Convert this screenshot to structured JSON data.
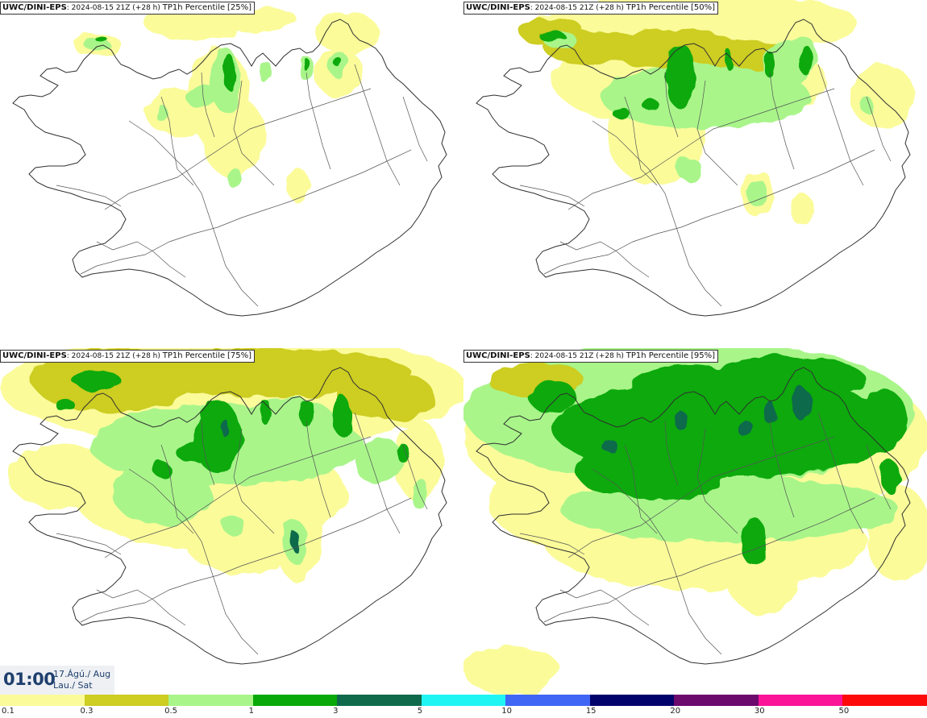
{
  "panels": [
    {
      "model": "UWC/DINI-EPS",
      "run": ": 2024-08-15 21Z (+28 h)",
      "product": "TP1h Percentile",
      "percentile": "[25%]"
    },
    {
      "model": "UWC/DINI-EPS",
      "run": ": 2024-08-15 21Z (+28 h)",
      "product": "TP1h Percentile",
      "percentile": "[50%]"
    },
    {
      "model": "UWC/DINI-EPS",
      "run": ": 2024-08-15 21Z (+28 h)",
      "product": "TP1h Percentile",
      "percentile": "[75%]"
    },
    {
      "model": "UWC/DINI-EPS",
      "run": ": 2024-08-15 21Z (+28 h)",
      "product": "TP1h Percentile",
      "percentile": "[95%]"
    }
  ],
  "valid_time": {
    "time": "01:00",
    "date": "17.Ágú./ Aug",
    "day": "Lau./ Sat"
  },
  "legend": {
    "ticks": [
      "0.1",
      "0.3",
      "0.5",
      "1",
      "3",
      "5",
      "10",
      "15",
      "20",
      "30",
      "50"
    ],
    "colors": [
      "#fbfb9a",
      "#cdcd22",
      "#a9f58a",
      "#09a909",
      "#0f6a4c",
      "#1ff5f3",
      "#3f66f4",
      "#02026c",
      "#6c0a6e",
      "#fb1498",
      "#fd0a0a"
    ]
  },
  "map_colors": {
    "coast": "#303030",
    "roads": "#555555"
  }
}
